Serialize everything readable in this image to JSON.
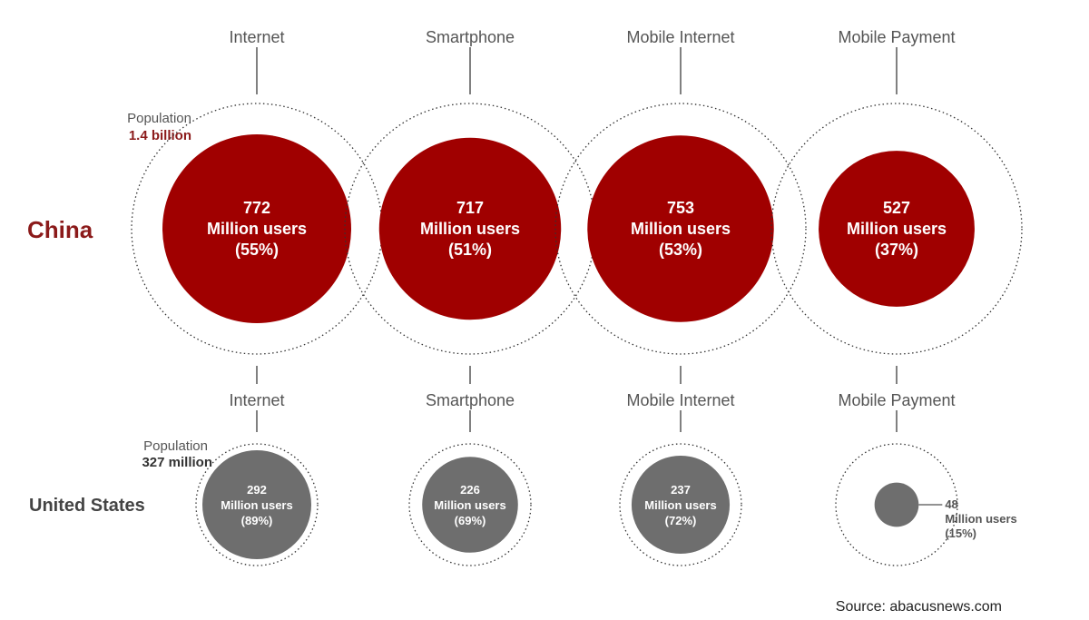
{
  "colors": {
    "china": "#a00000",
    "us": "#6e6e6e",
    "outline": "#333333",
    "connector": "#555555"
  },
  "source": "Source: abacusnews.com",
  "chart_data": {
    "type": "bubble-comparison",
    "unit": "Million users",
    "categories": [
      "Internet",
      "Smartphone",
      "Mobile Internet",
      "Mobile Payment"
    ],
    "countries": [
      {
        "name": "China",
        "population_label": "Population",
        "population_value": "1.4 billion",
        "population": 1400,
        "series": [
          {
            "category": "Internet",
            "users": 772,
            "percent": "55%"
          },
          {
            "category": "Smartphone",
            "users": 717,
            "percent": "51%"
          },
          {
            "category": "Mobile Internet",
            "users": 753,
            "percent": "53%"
          },
          {
            "category": "Mobile Payment",
            "users": 527,
            "percent": "37%"
          }
        ]
      },
      {
        "name": "United States",
        "population_label": "Population",
        "population_value": "327 million",
        "population": 327,
        "series": [
          {
            "category": "Internet",
            "users": 292,
            "percent": "89%"
          },
          {
            "category": "Smartphone",
            "users": 226,
            "percent": "69%"
          },
          {
            "category": "Mobile Internet",
            "users": 237,
            "percent": "72%"
          },
          {
            "category": "Mobile Payment",
            "users": 48,
            "percent": "15%"
          }
        ]
      }
    ]
  }
}
